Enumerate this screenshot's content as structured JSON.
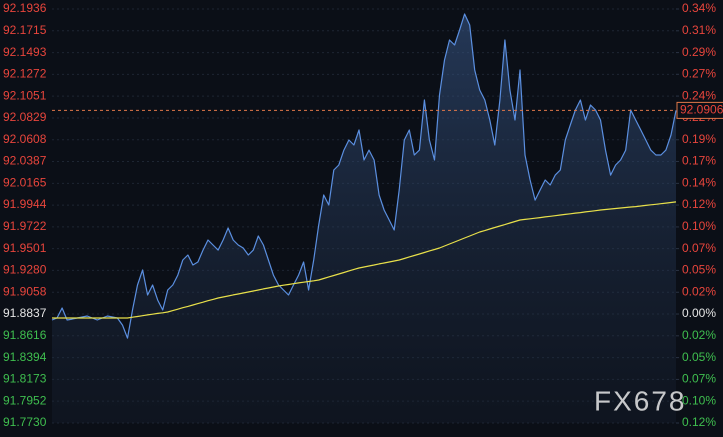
{
  "chart_data": {
    "type": "line",
    "ylim": [
      91.773,
      92.1936
    ],
    "yticks": [
      92.1936,
      92.1715,
      92.1493,
      92.1272,
      92.1051,
      92.0829,
      92.0608,
      92.0387,
      92.0165,
      91.9944,
      91.9722,
      91.9501,
      {
        "value": 91.928,
        "label": "91.9280"
      },
      91.9058,
      91.8837,
      91.8616,
      91.8394,
      91.8173,
      91.7952,
      {
        "value": 91.773,
        "label": "91.7730"
      }
    ],
    "y2lim": [
      -0.1205,
      0.3373
    ],
    "y2ticks": [
      {
        "value": 0.3373,
        "label": "0.34%"
      },
      {
        "value": 0.3132,
        "label": "0.31%"
      },
      {
        "value": 0.2891,
        "label": "0.29%"
      },
      {
        "value": 0.2651,
        "label": "0.27%"
      },
      {
        "value": 0.241,
        "label": "0.24%"
      },
      {
        "value": 0.2168,
        "label": "0.22%"
      },
      {
        "value": 0.1927,
        "label": "0.19%"
      },
      {
        "value": 0.1687,
        "label": "0.17%"
      },
      {
        "value": 0.1445,
        "label": "0.14%"
      },
      {
        "value": 0.1205,
        "label": "0.12%"
      },
      {
        "value": 0.0963,
        "label": "0.10%"
      },
      {
        "value": 0.0723,
        "label": "0.07%"
      },
      {
        "value": 0.0482,
        "label": "0.05%"
      },
      {
        "value": 0.0241,
        "label": "0.02%"
      },
      {
        "value": 0,
        "label": "0.00%"
      },
      {
        "value": -0.0241,
        "label": "0.02%"
      },
      {
        "value": -0.0482,
        "label": "0.05%"
      },
      {
        "value": -0.0723,
        "label": "0.07%"
      },
      {
        "value": -0.0963,
        "label": "0.10%"
      },
      {
        "value": -0.1205,
        "label": "0.12%"
      }
    ],
    "grid": true,
    "up_color": "#e8453c",
    "down_color": "#3fbf4f",
    "flat_color": "#e6e6e6",
    "last_price": 92.0906,
    "watermark": "FX678",
    "series": [
      {
        "color": "#5b8fe0",
        "values": [
          91.8776,
          91.8797,
          91.8898,
          91.8776,
          91.8786,
          91.8797,
          91.8807,
          91.8817,
          91.8797,
          91.8776,
          91.8797,
          91.8817,
          91.8807,
          91.8797,
          91.8725,
          91.8593,
          91.8878,
          91.9132,
          91.9284,
          91.903,
          91.9132,
          91.8979,
          91.8878,
          91.9081,
          91.9132,
          91.9233,
          91.9386,
          91.9437,
          91.9335,
          91.9366,
          91.9487,
          91.9589,
          91.9538,
          91.9487,
          91.9589,
          91.9711,
          91.9589,
          91.9538,
          91.9508,
          91.9437,
          91.9487,
          91.963,
          91.9538,
          91.9386,
          91.9233,
          91.9132,
          91.9081,
          91.903,
          91.9132,
          91.9233,
          91.9366,
          91.9081,
          91.9386,
          91.9741,
          92.0046,
          91.9945,
          92.03,
          92.0351,
          92.0503,
          92.0605,
          92.0554,
          92.0707,
          92.0402,
          92.0503,
          92.0402,
          92.0046,
          91.9894,
          91.9792,
          91.9691,
          92.0097,
          92.0605,
          92.0707,
          92.0453,
          92.0503,
          92.1011,
          92.0605,
          92.0402,
          92.1062,
          92.1418,
          92.1621,
          92.157,
          92.1723,
          92.1885,
          92.1773,
          92.1316,
          92.1113,
          92.1011,
          92.0808,
          92.0554,
          92.1011,
          92.1621,
          92.1113,
          92.0808,
          92.1316,
          92.0453,
          92.0199,
          91.9995,
          92.0097,
          92.0199,
          92.0148,
          92.0249,
          92.03,
          92.0605,
          92.0757,
          92.091,
          92.1011,
          92.0808,
          92.0961,
          92.091,
          92.0808,
          92.0503,
          92.0249,
          92.0351,
          92.0402,
          92.0503,
          92.091,
          92.0808,
          92.0707,
          92.0605,
          92.0503,
          92.0453,
          92.0453,
          92.0503,
          92.0656,
          92.0906
        ]
      },
      {
        "color": "#e8e04a",
        "values": [
          91.8797,
          91.8797,
          91.8797,
          91.8797,
          91.8797,
          91.8797,
          91.8797,
          91.8797,
          91.8797,
          91.8797,
          91.8797,
          91.8797,
          91.8797,
          91.8797,
          91.8797,
          91.8797,
          91.8805,
          91.8812,
          91.882,
          91.8828,
          91.8835,
          91.8843,
          91.885,
          91.8858,
          91.8872,
          91.8886,
          91.8901,
          91.8915,
          91.8929,
          91.8943,
          91.8957,
          91.8972,
          91.8986,
          91.9,
          91.901,
          91.902,
          91.9031,
          91.9041,
          91.9051,
          91.9061,
          91.9071,
          91.9081,
          91.9092,
          91.9102,
          91.9112,
          91.9122,
          91.913,
          91.9137,
          91.9145,
          91.9153,
          91.916,
          91.9168,
          91.9175,
          91.9183,
          91.9198,
          91.9214,
          91.9229,
          91.9244,
          91.9259,
          91.9275,
          91.929,
          91.9305,
          91.9315,
          91.9325,
          91.9335,
          91.9346,
          91.9356,
          91.9366,
          91.9376,
          91.9386,
          91.9401,
          91.9417,
          91.9432,
          91.9447,
          91.9462,
          91.9478,
          91.9493,
          91.9508,
          91.9528,
          91.9549,
          91.9569,
          91.9589,
          91.9609,
          91.963,
          91.965,
          91.967,
          91.9685,
          91.9701,
          91.9716,
          91.9731,
          91.9746,
          91.9762,
          91.9777,
          91.9792,
          91.9798,
          91.9805,
          91.9811,
          91.9817,
          91.9824,
          91.983,
          91.9836,
          91.9843,
          91.9849,
          91.9855,
          91.9862,
          91.9868,
          91.9875,
          91.9881,
          91.9887,
          91.9894,
          91.9899,
          91.9904,
          91.9909,
          91.9914,
          91.9919,
          91.9924,
          91.9929,
          91.9935,
          91.9941,
          91.9947,
          91.9952,
          91.9958,
          91.9964,
          91.997,
          91.9976
        ]
      }
    ]
  }
}
